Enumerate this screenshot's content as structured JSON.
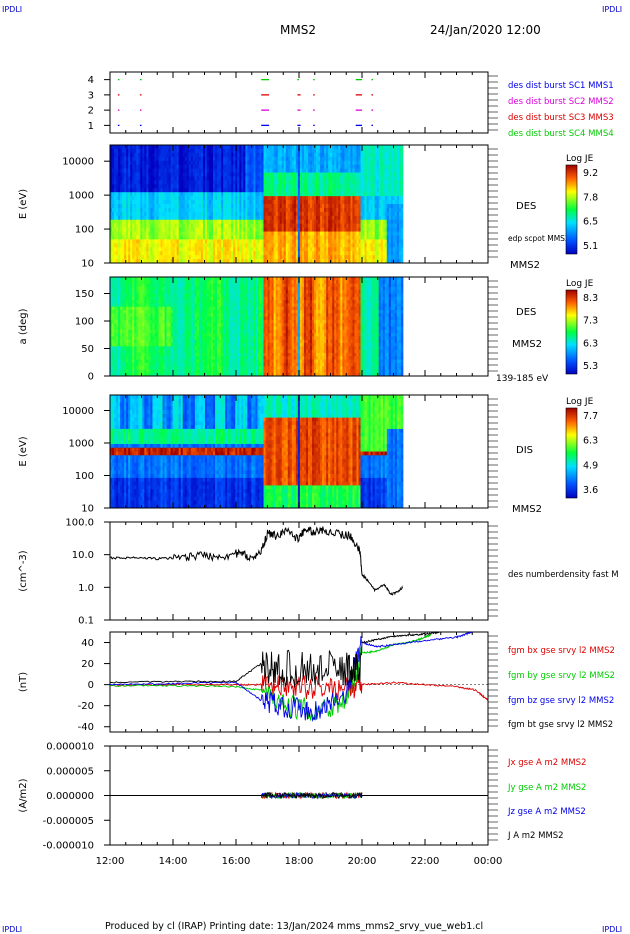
{
  "header": {
    "corner_label": "IPDLI",
    "title": "MMS2",
    "datetime": "24/Jan/2020 12:00"
  },
  "footer": {
    "text": "Produced by cl (IRAP)   Printing date: 13/Jan/2024   mms_mms2_srvy_vue_web1.cl"
  },
  "time_axis": {
    "range_hours": [
      12,
      24
    ],
    "tick_labels": [
      "12:00",
      "14:00",
      "16:00",
      "18:00",
      "20:00",
      "22:00",
      "00:00"
    ]
  },
  "colors": {
    "red": "#dd0000",
    "green": "#00cc00",
    "blue": "#0000ee",
    "magenta": "#dd00dd",
    "black": "#000000"
  },
  "chart_data": [
    {
      "type": "timeline",
      "ylim": [
        0.5,
        4.5
      ],
      "ytick_labels": [
        "1",
        "2",
        "3",
        "4"
      ],
      "legend": [
        {
          "text": "des dist burst SC1 MMS1",
          "color": "#0000ee"
        },
        {
          "text": "des dist burst SC2 MMS2",
          "color": "#dd00dd"
        },
        {
          "text": "des dist burst SC3 MMS3",
          "color": "#dd0000"
        },
        {
          "text": "des dist burst SC4 MMS4",
          "color": "#00cc00"
        }
      ],
      "segments": [
        {
          "row": 4,
          "intervals": [
            [
              12.25,
              12.3
            ],
            [
              12.95,
              13.0
            ],
            [
              16.8,
              17.05
            ],
            [
              17.95,
              18.0
            ],
            [
              18.45,
              18.5
            ],
            [
              19.8,
              20.0
            ],
            [
              20.3,
              20.35
            ]
          ]
        },
        {
          "row": 3,
          "intervals": [
            [
              12.25,
              12.3
            ],
            [
              12.95,
              13.0
            ],
            [
              16.8,
              17.05
            ],
            [
              17.95,
              18.05
            ],
            [
              18.45,
              18.5
            ],
            [
              19.8,
              20.0
            ],
            [
              20.3,
              20.35
            ]
          ]
        },
        {
          "row": 2,
          "intervals": [
            [
              12.25,
              12.3
            ],
            [
              12.95,
              13.0
            ],
            [
              16.8,
              17.05
            ],
            [
              17.95,
              18.05
            ],
            [
              18.45,
              18.5
            ],
            [
              19.8,
              20.0
            ],
            [
              20.3,
              20.35
            ]
          ]
        },
        {
          "row": 1,
          "intervals": [
            [
              12.25,
              12.3
            ],
            [
              12.95,
              13.0
            ],
            [
              16.8,
              17.05
            ],
            [
              17.95,
              18.05
            ],
            [
              18.45,
              18.5
            ],
            [
              19.8,
              20.0
            ],
            [
              20.3,
              20.35
            ]
          ]
        }
      ]
    },
    {
      "type": "heatmap",
      "ylabel": "E (eV)",
      "yscale": "log",
      "ylim": [
        10,
        30000
      ],
      "ytick_labels": [
        "10",
        "100",
        "1000",
        "10000"
      ],
      "right_labels": [
        "DES",
        "edp scpot MMS2",
        "MMS2"
      ],
      "colorbar": {
        "label": "Log JE",
        "ticks": [
          "9.2",
          "7.8",
          "6.5",
          "5.1"
        ],
        "range": [
          5.1,
          9.2
        ]
      },
      "data_end_hour": 21.3
    },
    {
      "type": "heatmap",
      "ylabel": "a (deg)",
      "ylim": [
        0,
        180
      ],
      "ytick_labels": [
        "0",
        "50",
        "100",
        "150"
      ],
      "right_labels": [
        "DES",
        "MMS2",
        "139-185 eV"
      ],
      "colorbar": {
        "label": "Log JE",
        "ticks": [
          "8.3",
          "7.3",
          "6.3",
          "5.3"
        ],
        "range": [
          5.3,
          8.3
        ]
      },
      "data_end_hour": 21.3
    },
    {
      "type": "heatmap",
      "ylabel": "E (eV)",
      "yscale": "log",
      "ylim": [
        10,
        30000
      ],
      "ytick_labels": [
        "10",
        "100",
        "1000",
        "10000"
      ],
      "right_labels": [
        "DIS",
        "MMS2"
      ],
      "colorbar": {
        "label": "Log JE",
        "ticks": [
          "7.7",
          "6.3",
          "4.9",
          "3.6"
        ],
        "range": [
          3.6,
          7.7
        ]
      },
      "data_end_hour": 21.3
    },
    {
      "type": "line",
      "ylabel": "(cm^-3)",
      "yscale": "log",
      "ylim": [
        0.1,
        100
      ],
      "ytick_labels": [
        "0.1",
        "1.0",
        "10.0",
        "100.0"
      ],
      "series": [
        {
          "name": "des numberdensity fast M",
          "color": "#000000",
          "x": [
            12.0,
            12.5,
            13.0,
            13.5,
            14.0,
            14.5,
            15.0,
            15.5,
            16.0,
            16.3,
            16.6,
            16.9,
            17.0,
            17.3,
            17.6,
            18.0,
            18.2,
            18.5,
            18.8,
            19.2,
            19.6,
            19.9,
            20.0,
            20.2,
            20.4,
            20.7,
            20.9,
            21.1,
            21.3
          ],
          "y": [
            8,
            8,
            8,
            7.5,
            8,
            9,
            10,
            9,
            11,
            10,
            7,
            20,
            45,
            40,
            55,
            30,
            60,
            50,
            60,
            45,
            40,
            15,
            2.5,
            1.5,
            0.8,
            1.2,
            0.6,
            0.7,
            1.0
          ]
        }
      ]
    },
    {
      "type": "line",
      "ylabel": "(nT)",
      "ylim": [
        -45,
        50
      ],
      "ytick_labels": [
        "-40",
        "-20",
        "0",
        "20",
        "40"
      ],
      "series": [
        {
          "name": "fgm bx gse srvy l2 MMS2",
          "color": "#dd0000",
          "x": [
            12.0,
            14.0,
            16.0,
            16.8,
            17.5,
            18.5,
            19.5,
            20.0,
            21.0,
            22.0,
            23.0,
            23.6,
            24.0
          ],
          "y": [
            -1,
            0,
            0,
            0,
            -2,
            -3,
            -4,
            0,
            2,
            0,
            -2,
            -5,
            -15
          ]
        },
        {
          "name": "fgm by gse srvy l2 MMS2",
          "color": "#00cc00",
          "x": [
            12.0,
            14.0,
            16.0,
            16.8,
            17.5,
            18.5,
            19.5,
            20.0,
            20.5,
            21.0,
            21.5,
            22.0,
            22.2
          ],
          "y": [
            -1,
            -1,
            -2,
            -5,
            -20,
            -25,
            -15,
            30,
            32,
            38,
            40,
            45,
            48
          ]
        },
        {
          "name": "fgm bz gse srvy l2 MMS2",
          "color": "#0000ee",
          "x": [
            12.0,
            14.0,
            16.0,
            16.8,
            17.5,
            18.5,
            19.5,
            20.0,
            20.5,
            21.0,
            22.0,
            23.0,
            23.5
          ],
          "y": [
            0,
            1,
            2,
            -15,
            -20,
            -25,
            -10,
            40,
            36,
            38,
            42,
            45,
            50
          ]
        },
        {
          "name": "fgm bt gse srvy l2 MMS2",
          "color": "#000000",
          "x": [
            12.0,
            14.0,
            16.0,
            16.8,
            17.5,
            18.5,
            19.5,
            20.0,
            20.5,
            21.0,
            21.5,
            22.0,
            22.5
          ],
          "y": [
            2,
            3,
            3,
            20,
            35,
            40,
            30,
            40,
            43,
            46,
            47,
            48,
            50
          ]
        }
      ]
    },
    {
      "type": "line",
      "ylabel": "(A/m2)",
      "ylim": [
        -0.0001,
        0.0001
      ],
      "ytick_labels": [
        "-0.000010",
        "-0.000005",
        "0.000000",
        "0.000005",
        "0.000010"
      ],
      "series": [
        {
          "name": "Jx gse A m2 MMS2",
          "color": "#dd0000"
        },
        {
          "name": "Jy gse A m2 MMS2",
          "color": "#00cc00"
        },
        {
          "name": "Jz gse A m2 MMS2",
          "color": "#0000ee"
        },
        {
          "name": "J A m2 MMS2",
          "color": "#000000"
        }
      ]
    }
  ]
}
